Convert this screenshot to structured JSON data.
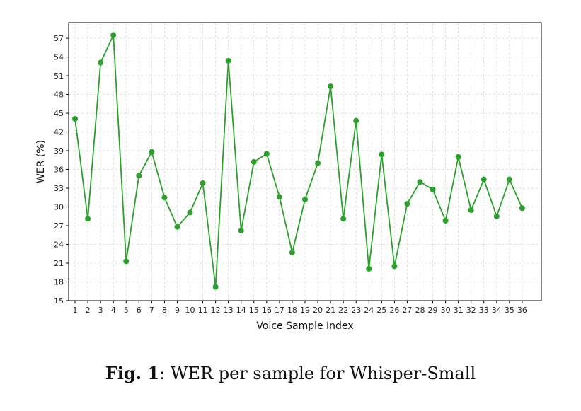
{
  "chart_data": {
    "type": "line",
    "xlabel": "Voice Sample Index",
    "ylabel": "WER (%)",
    "ylim": [
      15,
      59.5
    ],
    "xlim": [
      -0.5,
      36.5
    ],
    "yticks": [
      15,
      18,
      21,
      24,
      27,
      30,
      33,
      36,
      39,
      42,
      45,
      48,
      51,
      54,
      57
    ],
    "categories": [
      "1",
      "2",
      "3",
      "4",
      "5",
      "6",
      "7",
      "8",
      "9",
      "10",
      "11",
      "12",
      "13",
      "14",
      "15",
      "16",
      "17",
      "18",
      "19",
      "20",
      "21",
      "22",
      "23",
      "24",
      "25",
      "26",
      "27",
      "28",
      "29",
      "30",
      "31",
      "32",
      "33",
      "34",
      "35",
      "36"
    ],
    "series": [
      {
        "color": "#2ca02c",
        "values": [
          44.1,
          28.1,
          53.1,
          57.5,
          21.3,
          35.0,
          38.8,
          31.5,
          26.8,
          29.1,
          33.8,
          17.2,
          53.4,
          26.2,
          37.2,
          38.5,
          31.6,
          22.7,
          31.2,
          37.0,
          49.3,
          28.1,
          43.8,
          20.1,
          38.4,
          20.5,
          30.5,
          34.0,
          32.8,
          27.8,
          38.0,
          29.5,
          34.4,
          28.5,
          34.4,
          29.8
        ]
      }
    ],
    "grid": true,
    "legend": "none"
  },
  "caption": {
    "label": "Fig. 1",
    "text": ": WER per sample for Whisper-Small"
  }
}
